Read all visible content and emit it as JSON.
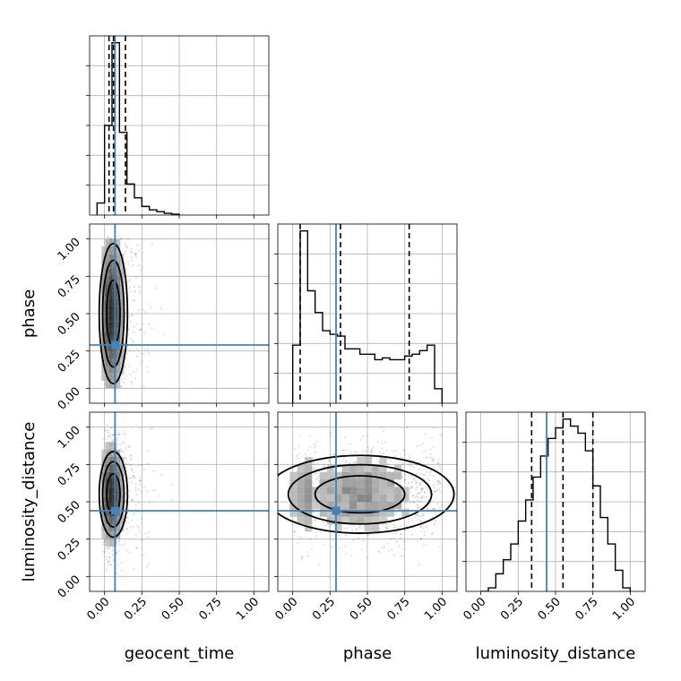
{
  "chart_data": {
    "type": "corner",
    "parameters": [
      "geocent_time",
      "phase",
      "luminosity_distance"
    ],
    "range": [
      0.0,
      1.0
    ],
    "tick_labels": [
      "0.00",
      "0.25",
      "0.50",
      "0.75",
      "1.00"
    ],
    "grid": true,
    "truth_color": "#4682b4",
    "truths": {
      "geocent_time": 0.07,
      "phase": 0.29,
      "luminosity_distance": 0.44
    },
    "quantile_lines": {
      "geocent_time": [
        0.03,
        0.06,
        0.14
      ],
      "phase": [
        0.05,
        0.32,
        0.78
      ],
      "luminosity_distance": [
        0.34,
        0.55,
        0.75
      ]
    },
    "histograms": {
      "geocent_time": {
        "bin_edges": [
          -0.05,
          0.0,
          0.05,
          0.1,
          0.15,
          0.2,
          0.25,
          0.3,
          0.35,
          0.4,
          0.45,
          0.5
        ],
        "values": [
          0.07,
          0.52,
          1.0,
          0.48,
          0.18,
          0.1,
          0.05,
          0.03,
          0.02,
          0.01,
          0.005
        ]
      },
      "phase": {
        "bin_edges": [
          0.0,
          0.05,
          0.1,
          0.15,
          0.2,
          0.25,
          0.3,
          0.35,
          0.4,
          0.45,
          0.5,
          0.55,
          0.6,
          0.65,
          0.7,
          0.75,
          0.8,
          0.85,
          0.9,
          0.95,
          1.0
        ],
        "values": [
          0.32,
          0.95,
          0.62,
          0.5,
          0.4,
          0.38,
          0.37,
          0.3,
          0.3,
          0.27,
          0.27,
          0.24,
          0.25,
          0.24,
          0.24,
          0.26,
          0.27,
          0.29,
          0.32,
          0.08
        ]
      },
      "luminosity_distance": {
        "bin_edges": [
          0.0,
          0.05,
          0.1,
          0.15,
          0.2,
          0.25,
          0.3,
          0.35,
          0.4,
          0.45,
          0.5,
          0.55,
          0.6,
          0.65,
          0.7,
          0.75,
          0.8,
          0.85,
          0.9,
          0.95,
          1.0
        ],
        "values": [
          0.0,
          0.02,
          0.1,
          0.18,
          0.27,
          0.4,
          0.52,
          0.65,
          0.77,
          0.87,
          0.93,
          0.98,
          0.94,
          0.9,
          0.8,
          0.6,
          0.42,
          0.27,
          0.12,
          0.02
        ]
      }
    },
    "density_2d": {
      "phase_vs_geocent_time": {
        "center": [
          0.05,
          0.5
        ],
        "sx": 0.045,
        "sy": 0.36
      },
      "luminosity_distance_vs_geocent_time": {
        "center": [
          0.05,
          0.55
        ],
        "sx": 0.045,
        "sy": 0.22
      },
      "luminosity_distance_vs_phase": {
        "center": [
          0.45,
          0.55
        ],
        "sx": 0.3,
        "sy": 0.2
      }
    }
  }
}
